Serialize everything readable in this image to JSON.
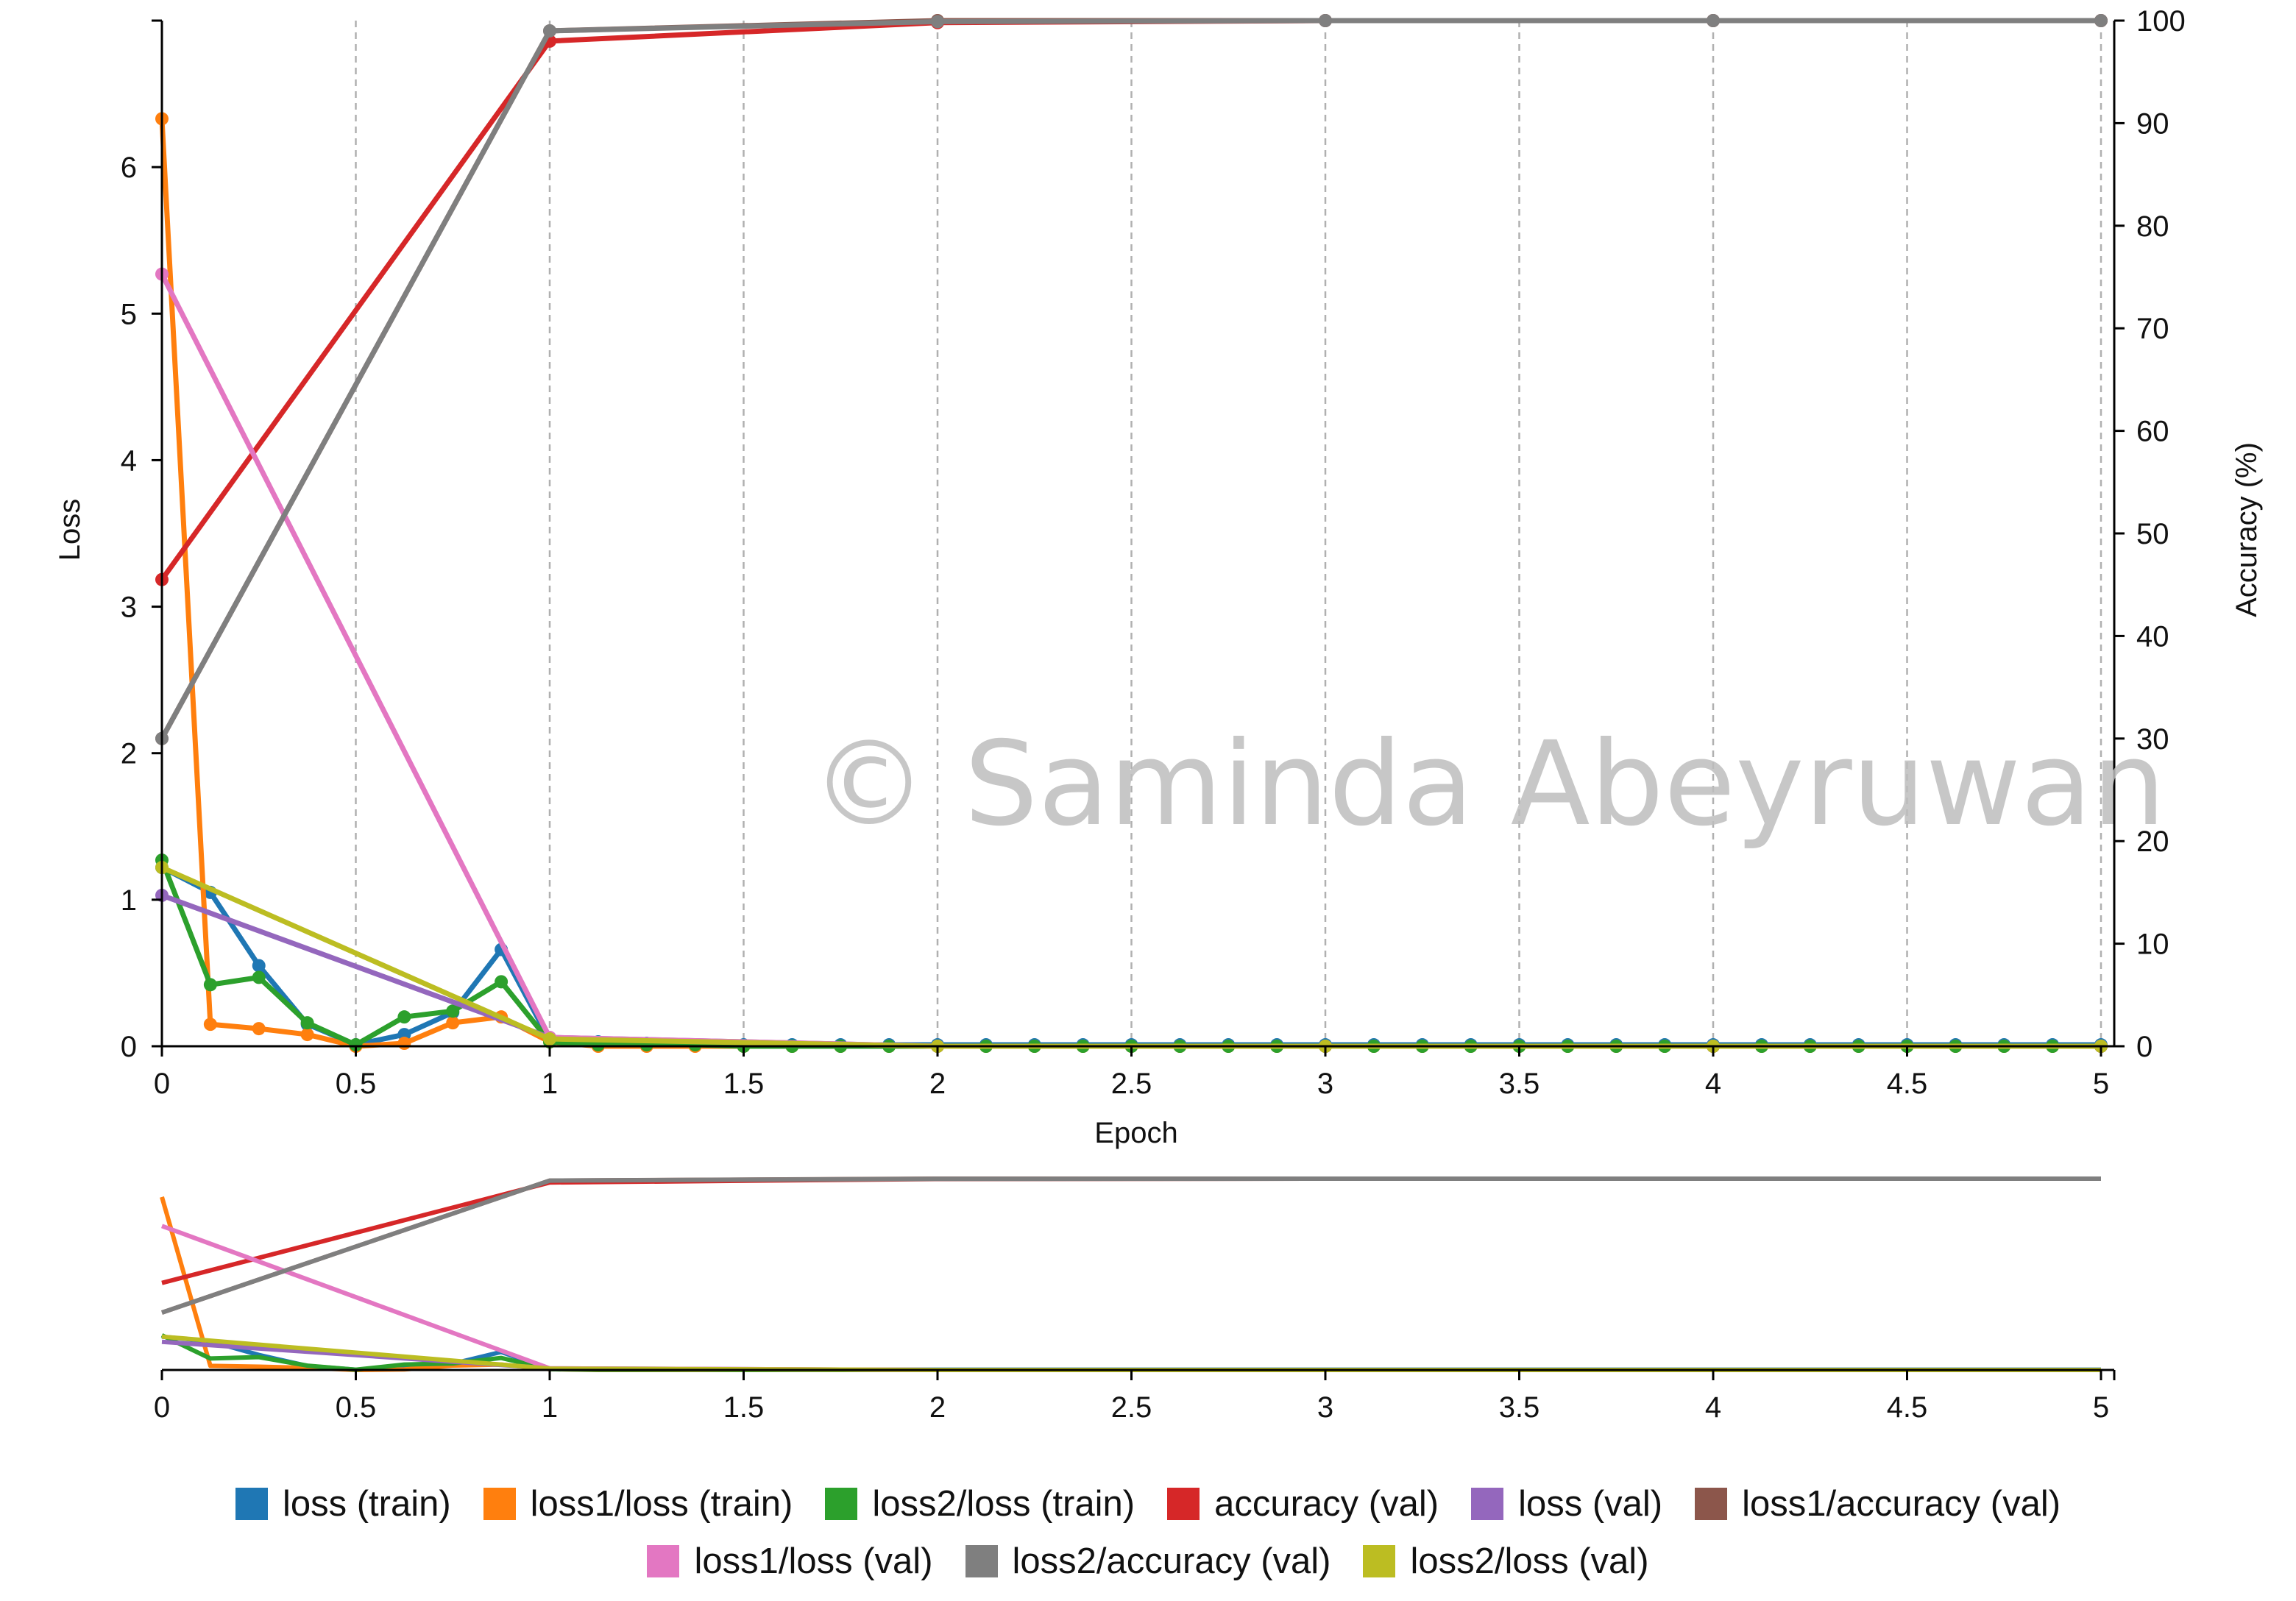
{
  "watermark": "© Saminda Abeyruwan",
  "chart_data": {
    "type": "line",
    "xlabel": "Epoch",
    "ylabel": "Loss",
    "y2label": "Accuracy (%)",
    "xlim": [
      0,
      5
    ],
    "ylim": [
      0,
      7
    ],
    "y2lim": [
      0,
      100
    ],
    "grid": "vertical dashed",
    "legend": "bottom",
    "x_ticks": [
      "0",
      "0.5",
      "1",
      "1.5",
      "2",
      "2.5",
      "3",
      "3.5",
      "4",
      "4.5",
      "5"
    ],
    "y_ticks": [
      "0",
      "1",
      "2",
      "3",
      "4",
      "5",
      "6"
    ],
    "y2_ticks": [
      "0",
      "10",
      "20",
      "30",
      "40",
      "50",
      "60",
      "70",
      "80",
      "90",
      "100"
    ],
    "series": [
      {
        "name": "loss (train)",
        "color": "#1f77b4",
        "axis": "left",
        "x": [
          0,
          0.125,
          0.25,
          0.375,
          0.5,
          0.625,
          0.75,
          0.875,
          1,
          1.125,
          1.25,
          1.375,
          1.5,
          1.625,
          1.75,
          1.875,
          2,
          2.125,
          2.25,
          2.375,
          2.5,
          2.625,
          2.75,
          2.875,
          3,
          3.125,
          3.25,
          3.375,
          3.5,
          3.625,
          3.75,
          3.875,
          4,
          4.125,
          4.25,
          4.375,
          4.5,
          4.625,
          4.75,
          4.875,
          5
        ],
        "y": [
          1.22,
          1.05,
          0.55,
          0.15,
          0.01,
          0.08,
          0.23,
          0.66,
          0.04,
          0.03,
          0.02,
          0.01,
          0.01,
          0.01,
          0.01,
          0.01,
          0.01,
          0.01,
          0.01,
          0.01,
          0.01,
          0.01,
          0.01,
          0.01,
          0.01,
          0.01,
          0.01,
          0.01,
          0.01,
          0.01,
          0.01,
          0.01,
          0.01,
          0.01,
          0.01,
          0.01,
          0.01,
          0.01,
          0.01,
          0.01,
          0.01
        ]
      },
      {
        "name": "loss1/loss (train)",
        "color": "#ff7f0e",
        "axis": "left",
        "x": [
          0,
          0.125,
          0.25,
          0.375,
          0.5,
          0.625,
          0.75,
          0.875,
          1,
          1.125,
          1.25,
          1.375,
          1.5,
          1.625,
          1.75,
          1.875,
          2,
          2.125,
          2.25,
          2.375,
          2.5,
          2.625,
          2.75,
          2.875,
          3,
          3.125,
          3.25,
          3.375,
          3.5,
          3.625,
          3.75,
          3.875,
          4,
          4.125,
          4.25,
          4.375,
          4.5,
          4.625,
          4.75,
          4.875,
          5
        ],
        "y": [
          6.33,
          0.15,
          0.12,
          0.08,
          0.0,
          0.02,
          0.16,
          0.2,
          0.03,
          0.0,
          0.0,
          0.0,
          0.0,
          0.0,
          0.0,
          0.0,
          0.0,
          0.0,
          0.0,
          0.0,
          0.0,
          0.0,
          0.0,
          0.0,
          0.0,
          0.0,
          0.0,
          0.0,
          0.0,
          0.0,
          0.0,
          0.0,
          0.0,
          0.0,
          0.0,
          0.0,
          0.0,
          0.0,
          0.0,
          0.0,
          0.0
        ]
      },
      {
        "name": "loss2/loss (train)",
        "color": "#2ca02c",
        "axis": "left",
        "x": [
          0,
          0.125,
          0.25,
          0.375,
          0.5,
          0.625,
          0.75,
          0.875,
          1,
          1.125,
          1.25,
          1.375,
          1.5,
          1.625,
          1.75,
          1.875,
          2,
          2.125,
          2.25,
          2.375,
          2.5,
          2.625,
          2.75,
          2.875,
          3,
          3.125,
          3.25,
          3.375,
          3.5,
          3.625,
          3.75,
          3.875,
          4,
          4.125,
          4.25,
          4.375,
          4.5,
          4.625,
          4.75,
          4.875,
          5
        ],
        "y": [
          1.27,
          0.42,
          0.47,
          0.16,
          0.01,
          0.2,
          0.24,
          0.44,
          0.03,
          0.01,
          0.01,
          0.01,
          0.0,
          0.0,
          0.0,
          0.0,
          0.0,
          0.0,
          0.0,
          0.0,
          0.0,
          0.0,
          0.0,
          0.0,
          0.0,
          0.0,
          0.0,
          0.0,
          0.0,
          0.0,
          0.0,
          0.0,
          0.0,
          0.0,
          0.0,
          0.0,
          0.0,
          0.0,
          0.0,
          0.0,
          0.0
        ]
      },
      {
        "name": "accuracy (val)",
        "color": "#d62728",
        "axis": "right",
        "x": [
          0,
          1,
          2,
          3,
          4,
          5
        ],
        "y": [
          45.5,
          98.0,
          99.8,
          100.0,
          100.0,
          100.0
        ]
      },
      {
        "name": "loss (val)",
        "color": "#9467bd",
        "axis": "left",
        "x": [
          0,
          1,
          2,
          3,
          4,
          5
        ],
        "y": [
          1.03,
          0.06,
          0.0,
          0.0,
          0.0,
          0.0
        ]
      },
      {
        "name": "loss1/accuracy (val)",
        "color": "#8c564b",
        "axis": "right",
        "x": [
          0,
          1,
          2,
          3,
          4,
          5
        ],
        "y": [
          30.0,
          99.0,
          100.0,
          100.0,
          100.0,
          100.0
        ]
      },
      {
        "name": "loss1/loss (val)",
        "color": "#e377c2",
        "axis": "left",
        "x": [
          0,
          1,
          2,
          3,
          4,
          5
        ],
        "y": [
          5.27,
          0.06,
          0.0,
          0.0,
          0.0,
          0.0
        ]
      },
      {
        "name": "loss2/accuracy (val)",
        "color": "#7f7f7f",
        "axis": "right",
        "x": [
          0,
          1,
          2,
          3,
          4,
          5
        ],
        "y": [
          30.0,
          99.0,
          99.9,
          100.0,
          100.0,
          100.0
        ]
      },
      {
        "name": "loss2/loss (val)",
        "color": "#bcbd22",
        "axis": "left",
        "x": [
          0,
          1,
          2,
          3,
          4,
          5
        ],
        "y": [
          1.22,
          0.05,
          0.0,
          0.0,
          0.0,
          0.0
        ]
      }
    ],
    "legend_rows": [
      [
        0,
        1,
        2,
        3,
        4,
        5
      ],
      [
        6,
        7,
        8
      ]
    ]
  }
}
